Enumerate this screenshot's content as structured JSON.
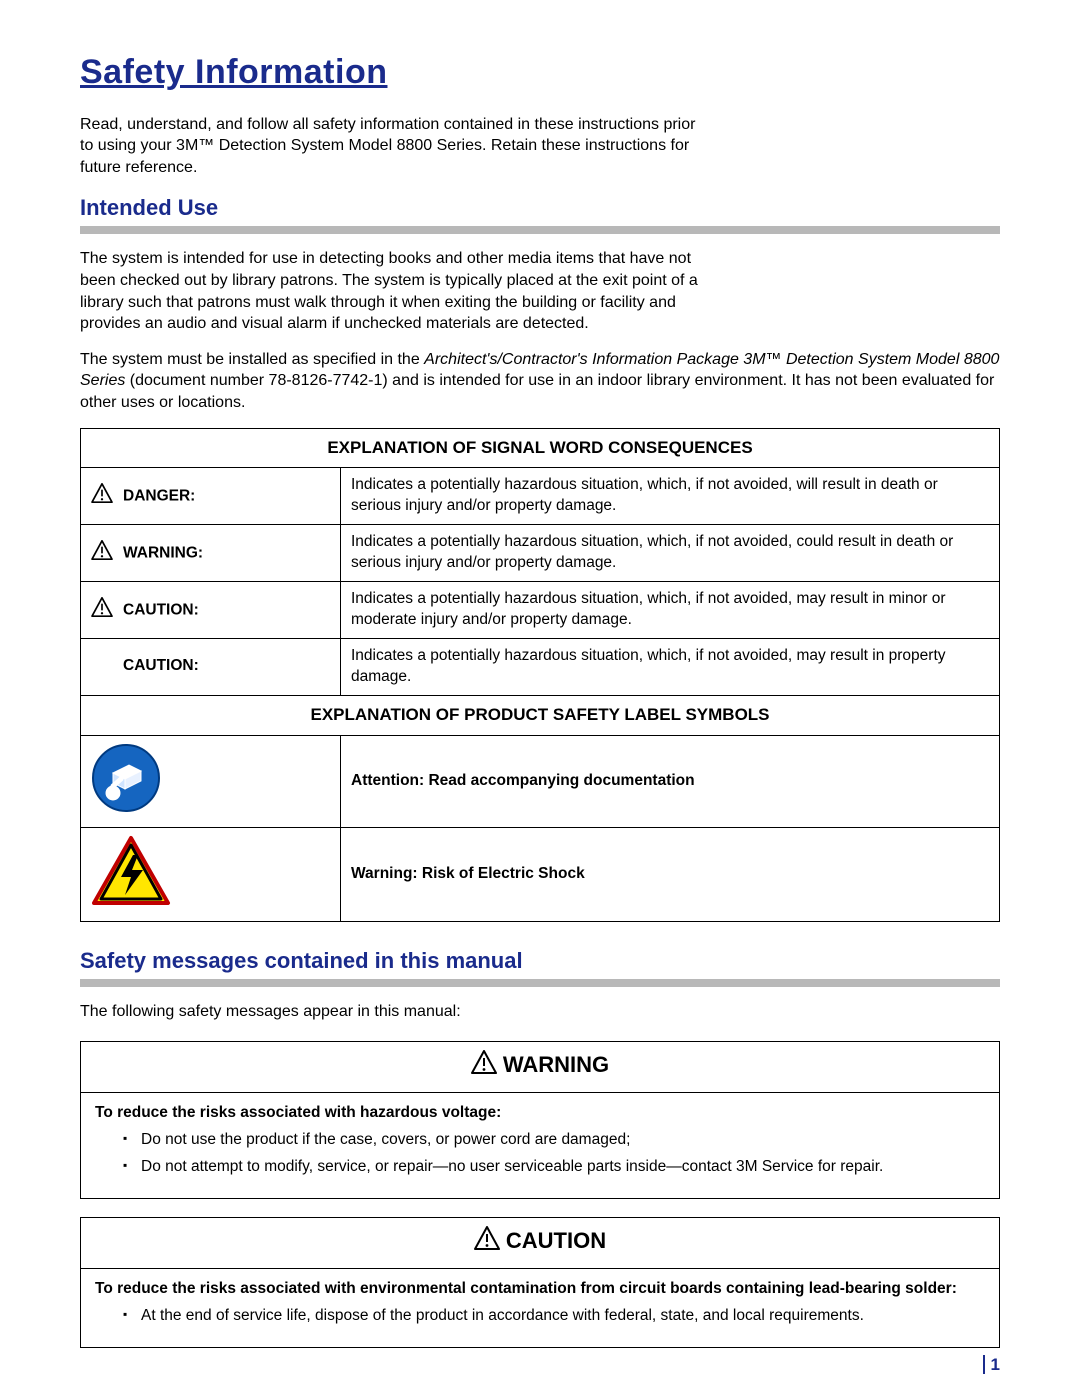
{
  "title": "Safety Information",
  "intro": "Read, understand, and follow all safety information contained in these instructions prior to using your 3M™ Detection System Model 8800 Series. Retain these instructions for future reference.",
  "intended_use_heading": "Intended Use",
  "intended_use_p1": "The system is intended for use in detecting books and other media items that have not been checked out by library patrons. The system is typically placed at the exit point of a library such that patrons must walk through it when exiting the building or facility and provides an audio and visual alarm if unchecked materials are detected.",
  "intended_use_p2_a": "The system must be installed as specified in the ",
  "intended_use_p2_ital": "Architect's/Contractor's Information Package 3M™ Detection System Model 8800 Series",
  "intended_use_p2_b": " (document number 78-8126-7742-1) and is intended for use in an indoor library environment. It has not been evaluated for other uses or locations.",
  "signal_table": {
    "header": "EXPLANATION OF SIGNAL WORD CONSEQUENCES",
    "rows": [
      {
        "icon": true,
        "label": "DANGER:",
        "desc": "Indicates a potentially hazardous situation, which, if not avoided, will result in death or serious injury and/or property damage."
      },
      {
        "icon": true,
        "label": "WARNING:",
        "desc": "Indicates a potentially hazardous situation, which, if not avoided, could result in death or serious injury and/or property damage."
      },
      {
        "icon": true,
        "label": "CAUTION:",
        "desc": "Indicates a potentially hazardous situation, which, if not avoided, may result in minor or moderate injury and/or property damage."
      },
      {
        "icon": false,
        "label": "CAUTION:",
        "desc": "Indicates a potentially hazardous situation, which, if not avoided, may result in property damage."
      }
    ]
  },
  "symbol_table": {
    "header": "EXPLANATION OF PRODUCT SAFETY LABEL SYMBOLS",
    "rows": [
      {
        "symbol": "read-doc",
        "desc": "Attention: Read accompanying documentation"
      },
      {
        "symbol": "electric",
        "desc": "Warning: Risk of Electric Shock"
      }
    ]
  },
  "safety_msgs_heading": "Safety messages contained in this manual",
  "safety_msgs_intro": "The following safety messages appear in this manual:",
  "warning_box": {
    "title": "WARNING",
    "lead": "To reduce the risks associated with hazardous voltage:",
    "bullets": [
      "Do not use the product if the case, covers, or power cord are damaged;",
      "Do not attempt to modify, service, or repair—no user serviceable parts inside—contact 3M Service for repair."
    ]
  },
  "caution_box": {
    "title": "CAUTION",
    "lead": "To reduce the risks associated with environmental contamination from circuit boards containing lead-bearing solder:",
    "bullets": [
      "At the end of service life, dispose of the product in accordance with federal, state, and local requirements."
    ]
  },
  "page_number": "1",
  "colors": {
    "heading_blue": "#1a2b8c",
    "rule_gray": "#b8b8b8",
    "electric_yellow": "#ffe600",
    "electric_border": "#c00000",
    "read_doc_blue": "#1565c0"
  }
}
